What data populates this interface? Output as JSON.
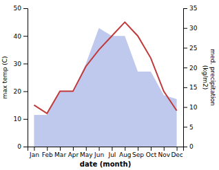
{
  "chart_data": {
    "type": "line",
    "xlabel": "date (month)",
    "ylabel": "max temp (C)",
    "y2label": "med. precipitation\n(kg/m2)",
    "categories": [
      "Jan",
      "Feb",
      "Mar",
      "Apr",
      "May",
      "Jun",
      "Jul",
      "Aug",
      "Sep",
      "Oct",
      "Nov",
      "Dec"
    ],
    "series": [
      {
        "type": "area",
        "axis": "y2",
        "color": "#bfc8ed",
        "values": [
          8,
          8,
          14,
          14,
          21,
          30,
          28,
          28,
          19,
          19,
          13,
          12
        ]
      },
      {
        "type": "line",
        "color": "#c0393b",
        "values": [
          15,
          12,
          20,
          20,
          29,
          35,
          40,
          45,
          40,
          32,
          20,
          13
        ]
      }
    ],
    "ylim": [
      0,
      50
    ],
    "yticks": [
      0,
      10,
      20,
      30,
      40,
      50
    ],
    "y2lim": [
      0,
      35
    ],
    "y2ticks": [
      0,
      5,
      10,
      15,
      20,
      25,
      30,
      35
    ],
    "grid": false
  }
}
